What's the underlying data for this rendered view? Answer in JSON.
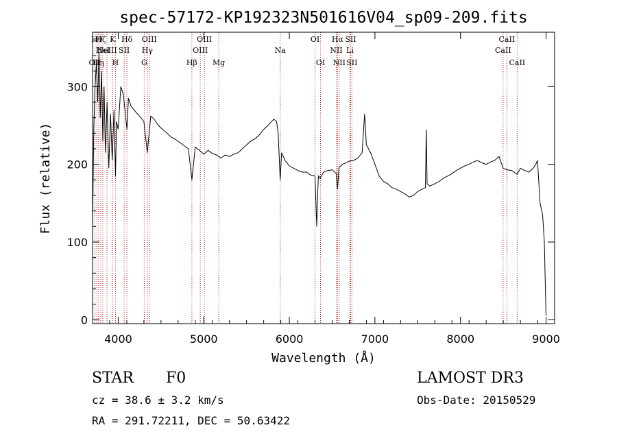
{
  "chart_data": {
    "type": "line",
    "title": "spec-57172-KP192323N501616V04_sp09-209.fits",
    "xlabel": "Wavelength (Å)",
    "ylabel": "Flux (relative)",
    "xlim": [
      3700,
      9100
    ],
    "ylim": [
      -5,
      370
    ],
    "x_ticks": [
      4000,
      5000,
      6000,
      7000,
      8000,
      9000
    ],
    "y_ticks": [
      0,
      100,
      200,
      300
    ],
    "grid": false,
    "series": [
      {
        "name": "spectrum",
        "color": "#000000",
        "x": [
          3700,
          3715,
          3730,
          3745,
          3760,
          3775,
          3790,
          3805,
          3820,
          3835,
          3850,
          3870,
          3890,
          3910,
          3930,
          3950,
          3968,
          3980,
          4000,
          4030,
          4060,
          4080,
          4101,
          4120,
          4150,
          4200,
          4250,
          4300,
          4340,
          4380,
          4420,
          4470,
          4520,
          4570,
          4620,
          4670,
          4720,
          4770,
          4820,
          4861,
          4900,
          4950,
          5000,
          5050,
          5100,
          5150,
          5200,
          5250,
          5300,
          5350,
          5400,
          5450,
          5500,
          5550,
          5600,
          5650,
          5700,
          5750,
          5790,
          5820,
          5850,
          5870,
          5893,
          5910,
          5950,
          6000,
          6050,
          6100,
          6150,
          6200,
          6250,
          6300,
          6320,
          6330,
          6340,
          6360,
          6400,
          6450,
          6500,
          6550,
          6563,
          6580,
          6620,
          6660,
          6700,
          6750,
          6800,
          6850,
          6880,
          6900,
          6950,
          7000,
          7050,
          7100,
          7150,
          7200,
          7250,
          7300,
          7350,
          7400,
          7450,
          7500,
          7550,
          7590,
          7600,
          7610,
          7640,
          7700,
          7750,
          7800,
          7850,
          7900,
          7950,
          8000,
          8050,
          8100,
          8150,
          8200,
          8250,
          8300,
          8350,
          8400,
          8450,
          8498,
          8542,
          8600,
          8662,
          8700,
          8750,
          8800,
          8850,
          8880,
          8900,
          8930,
          8960,
          8980,
          9000
        ],
        "y": [
          120,
          250,
          300,
          330,
          280,
          345,
          260,
          320,
          230,
          300,
          215,
          280,
          195,
          265,
          205,
          270,
          185,
          255,
          245,
          300,
          290,
          270,
          245,
          285,
          275,
          268,
          262,
          255,
          215,
          262,
          258,
          250,
          245,
          240,
          235,
          232,
          228,
          224,
          220,
          180,
          222,
          218,
          213,
          218,
          214,
          212,
          208,
          212,
          210,
          213,
          215,
          220,
          225,
          230,
          233,
          238,
          245,
          250,
          255,
          258,
          255,
          240,
          180,
          215,
          205,
          198,
          195,
          192,
          190,
          190,
          186,
          185,
          120,
          160,
          185,
          182,
          190,
          192,
          193,
          188,
          168,
          196,
          200,
          202,
          204,
          205,
          208,
          215,
          265,
          225,
          215,
          200,
          185,
          178,
          175,
          170,
          168,
          165,
          162,
          158,
          160,
          165,
          168,
          170,
          245,
          175,
          172,
          175,
          178,
          182,
          185,
          188,
          192,
          195,
          198,
          200,
          203,
          205,
          202,
          200,
          203,
          205,
          210,
          195,
          193,
          192,
          187,
          195,
          192,
          190,
          195,
          200,
          205,
          150,
          135,
          100,
          5
        ]
      }
    ],
    "line_markers": [
      {
        "x": 3727,
        "labels": [
          "OII"
        ],
        "row": 3
      },
      {
        "x": 3750,
        "labels": [
          "Hθ"
        ],
        "row": 1
      },
      {
        "x": 3771,
        "labels": [
          "Hη"
        ],
        "row": 3
      },
      {
        "x": 3797,
        "labels": [
          "Hζ"
        ],
        "row": 1
      },
      {
        "x": 3820,
        "labels": [
          "HeI"
        ],
        "row": 2
      },
      {
        "x": 3869,
        "labels": [
          "NeIII"
        ],
        "row": 2
      },
      {
        "x": 3934,
        "labels": [
          "K"
        ],
        "row": 1
      },
      {
        "x": 3968,
        "labels": [
          "H"
        ],
        "row": 3
      },
      {
        "x": 4069,
        "labels": [
          "SII"
        ],
        "row": 2
      },
      {
        "x": 4101,
        "labels": [
          "Hδ"
        ],
        "row": 1
      },
      {
        "x": 4304,
        "labels": [
          "G"
        ],
        "row": 3
      },
      {
        "x": 4340,
        "labels": [
          "Hγ"
        ],
        "row": 2
      },
      {
        "x": 4363,
        "labels": [
          "OIII"
        ],
        "row": 1
      },
      {
        "x": 4861,
        "labels": [
          "Hβ"
        ],
        "row": 3
      },
      {
        "x": 4959,
        "labels": [
          "OIII"
        ],
        "row": 2
      },
      {
        "x": 5007,
        "labels": [
          "OIII"
        ],
        "row": 1
      },
      {
        "x": 5175,
        "labels": [
          "Mg"
        ],
        "row": 3
      },
      {
        "x": 5893,
        "labels": [
          "Na"
        ],
        "row": 2
      },
      {
        "x": 6300,
        "labels": [
          "OI"
        ],
        "row": 1
      },
      {
        "x": 6364,
        "labels": [
          "OI"
        ],
        "row": 3
      },
      {
        "x": 6548,
        "labels": [
          "NII"
        ],
        "row": 2
      },
      {
        "x": 6563,
        "labels": [
          "Hα"
        ],
        "row": 1
      },
      {
        "x": 6583,
        "labels": [
          "NII"
        ],
        "row": 3
      },
      {
        "x": 6708,
        "labels": [
          "Li"
        ],
        "row": 2
      },
      {
        "x": 6716,
        "labels": [
          "SII"
        ],
        "row": 1
      },
      {
        "x": 6731,
        "labels": [
          "SII"
        ],
        "row": 3
      },
      {
        "x": 8498,
        "labels": [
          "CaII"
        ],
        "row": 2
      },
      {
        "x": 8542,
        "labels": [
          "CaII"
        ],
        "row": 1
      },
      {
        "x": 8662,
        "labels": [
          "CaII"
        ],
        "row": 3
      }
    ]
  },
  "info": {
    "class": "STAR",
    "subclass": "F0",
    "cz": "cz = 38.6 ± 3.2 km/s",
    "radec": "RA = 291.72211, DEC =  50.63422",
    "survey": "LAMOST DR3",
    "obsdate": "Obs-Date: 20150529"
  },
  "colors": {
    "line_marker": "#b22222",
    "spectrum": "#000000",
    "axes": "#000000"
  }
}
